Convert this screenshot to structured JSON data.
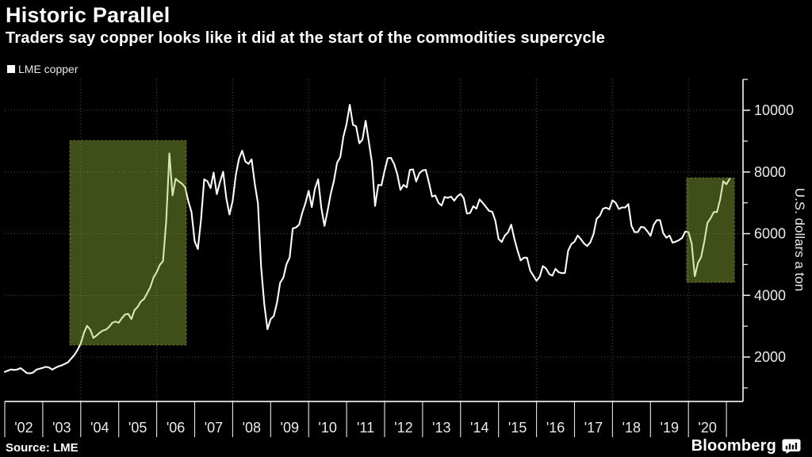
{
  "header": {
    "title": "Historic Parallel",
    "subtitle": "Traders say copper looks like it did at the start of the commodities supercycle"
  },
  "legend": {
    "label": "LME copper",
    "swatch_color": "#ffffff"
  },
  "footer": {
    "source": "Source: LME",
    "brand": "Bloomberg"
  },
  "chart_data": {
    "type": "line",
    "title": "Historic Parallel",
    "subtitle": "Traders say copper looks like it did at the start of the commodities supercycle",
    "ylabel": "U.S. dollars a ton",
    "xlabel": "",
    "x_range": [
      2002,
      2021.44
    ],
    "y_range": [
      1000,
      11000
    ],
    "y_major_ticks": [
      2000,
      4000,
      6000,
      8000,
      10000
    ],
    "y_minor_ticks": [
      1000,
      3000,
      5000,
      7000,
      9000,
      11000
    ],
    "x_boundary_years": [
      2002,
      2003,
      2004,
      2005,
      2006,
      2007,
      2008,
      2009,
      2010,
      2011,
      2012,
      2013,
      2014,
      2015,
      2016,
      2017,
      2018,
      2019,
      2020,
      2021
    ],
    "x_tick_labels": [
      "'02",
      "'03",
      "'04",
      "'05",
      "'06",
      "'07",
      "'08",
      "'09",
      "'10",
      "'11",
      "'12",
      "'13",
      "'14",
      "'15",
      "'16",
      "'17",
      "'18",
      "'19",
      "'20"
    ],
    "grid": {
      "style": "dotted",
      "color": "#4e4c45",
      "h_values": [
        2000,
        4000,
        6000,
        8000,
        10000
      ],
      "v_years": [
        2004,
        2006,
        2008,
        2010,
        2012,
        2014,
        2016,
        2018,
        2020
      ]
    },
    "axis_color": "#e9e8e4",
    "series": [
      {
        "name": "LME copper",
        "color": "#fefefc",
        "x_start": 2002.0,
        "x_step": "monthly",
        "values": [
          1520,
          1560,
          1600,
          1580,
          1600,
          1640,
          1560,
          1480,
          1470,
          1500,
          1590,
          1620,
          1650,
          1680,
          1660,
          1590,
          1650,
          1700,
          1730,
          1780,
          1830,
          1950,
          2070,
          2230,
          2440,
          2780,
          3010,
          2890,
          2620,
          2700,
          2790,
          2860,
          2890,
          2980,
          3110,
          3150,
          3110,
          3260,
          3380,
          3400,
          3230,
          3520,
          3630,
          3800,
          3880,
          4070,
          4270,
          4580,
          4750,
          4990,
          5110,
          6400,
          8600,
          7240,
          7780,
          7690,
          7620,
          7500,
          7050,
          6700,
          5750,
          5500,
          6450,
          7760,
          7700,
          7480,
          7980,
          7280,
          7670,
          8010,
          7150,
          6620,
          7060,
          7900,
          8430,
          8690,
          8340,
          8260,
          8410,
          7620,
          6980,
          4920,
          3710,
          2900,
          3230,
          3330,
          3760,
          4410,
          4570,
          5010,
          5230,
          6170,
          6200,
          6290,
          6680,
          6990,
          7390,
          6860,
          7460,
          7760,
          6840,
          6250,
          6740,
          7290,
          7710,
          8300,
          8480,
          9150,
          9560,
          10180,
          9530,
          9480,
          8930,
          9050,
          9660,
          9000,
          8320,
          6900,
          7580,
          7570,
          8040,
          8450,
          8460,
          8260,
          7930,
          7420,
          7580,
          7500,
          8070,
          8080,
          7690,
          7960,
          8050,
          8070,
          7660,
          7200,
          7240,
          7000,
          6910,
          7190,
          7160,
          7200,
          7070,
          7210,
          7290,
          7150,
          6650,
          6670,
          6890,
          6810,
          7110,
          7000,
          6870,
          6740,
          6710,
          6420,
          5830,
          5730,
          5940,
          6040,
          6290,
          5830,
          5460,
          5130,
          5220,
          5220,
          4800,
          4640,
          4470,
          4600,
          4950,
          4870,
          4690,
          4640,
          4860,
          4750,
          4720,
          4730,
          5450,
          5660,
          5740,
          5940,
          5820,
          5680,
          5600,
          5720,
          5980,
          6480,
          6580,
          6810,
          6840,
          6790,
          7080,
          7000,
          6800,
          6850,
          6850,
          6960,
          6250,
          6050,
          6050,
          6220,
          6200,
          6080,
          5930,
          6280,
          6440,
          6440,
          6020,
          5870,
          5940,
          5710,
          5740,
          5790,
          5860,
          6070,
          6050,
          5690,
          4620,
          5050,
          5240,
          5740,
          6350,
          6500,
          6700,
          6700,
          7100,
          7700,
          7600,
          7780
        ]
      }
    ],
    "highlight_boxes": [
      {
        "x0": 2003.71,
        "x1": 2006.78,
        "y0": 2390,
        "y1": 9020,
        "fill": "#9fc43e",
        "fill_opacity": 0.4,
        "stroke": "#b4d159",
        "stroke_opacity": 0.55
      },
      {
        "x0": 2019.95,
        "x1": 2021.21,
        "y0": 4420,
        "y1": 7810,
        "fill": "#9fc43e",
        "fill_opacity": 0.4,
        "stroke": "#b4d159",
        "stroke_opacity": 0.55
      }
    ],
    "legend_position": "top-left",
    "grid_on": true
  }
}
